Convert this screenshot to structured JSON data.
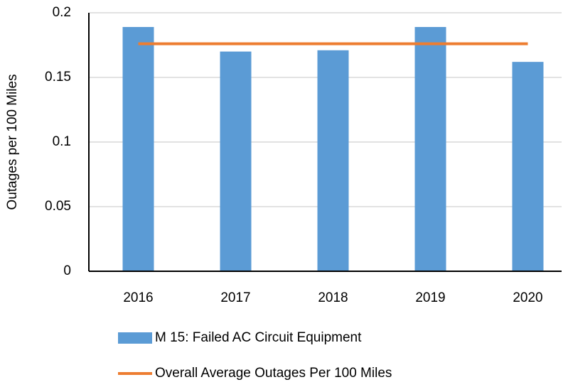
{
  "chart_data": {
    "type": "combo",
    "y_label": "Outages per 100 Miles",
    "categories": [
      "2016",
      "2017",
      "2018",
      "2019",
      "2020"
    ],
    "series": [
      {
        "name": "M 15: Failed AC Circuit Equipment",
        "type": "bar",
        "color": "#5b9bd5",
        "values": [
          0.189,
          0.17,
          0.171,
          0.189,
          0.162
        ]
      },
      {
        "name": "Overall Average Outages Per 100 Miles",
        "type": "line",
        "color": "#ed7d31",
        "values": [
          0.176,
          0.176,
          0.176,
          0.176,
          0.176
        ]
      }
    ],
    "ylim": [
      0,
      0.2
    ],
    "yticks": [
      0,
      0.05,
      0.1,
      0.15,
      0.2
    ],
    "grid": true
  }
}
